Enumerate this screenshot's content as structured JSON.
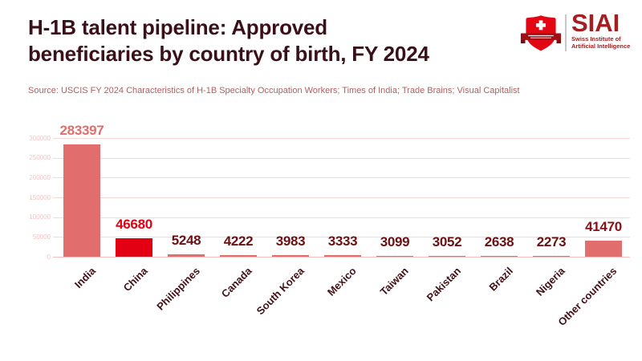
{
  "header": {
    "title_line1": "H-1B talent pipeline: Approved",
    "title_line2": "beneficiaries by country of birth, FY 2024",
    "source": "Source: USCIS FY 2024 Characteristics of H-1B Specialty Occupation Workers; Times of India; Trade Brains; Visual Capitalist"
  },
  "logo": {
    "acronym": "SIAI",
    "tagline_line1": "Swiss Institute of",
    "tagline_line2": "Artificial Intelligence",
    "shield_icon": "swiss-shield-icon"
  },
  "colors": {
    "title": "#3a1119",
    "source": "#b25e5e",
    "bar_default": "#e26d6d",
    "bar_highlight": "#e30012",
    "value_label_default": "#6d1013",
    "axis_label": "#431016",
    "tick_label": "#f6c3c3",
    "gridline": "#f8d7d7",
    "baseline": "#f3bdbd",
    "logo_red": "#a41e22",
    "shield_red": "#e30613",
    "ribbon_red": "#9e1016",
    "ribbon_fold": "#7c0c12"
  },
  "chart_data": {
    "type": "bar",
    "title": "H-1B talent pipeline: Approved beneficiaries by country of birth, FY 2024",
    "xlabel": "",
    "ylabel": "",
    "categories": [
      "India",
      "China",
      "Philippines",
      "Canada",
      "South Korea",
      "Mexico",
      "Taiwan",
      "Pakistan",
      "Brazil",
      "Nigeria",
      "Other countries"
    ],
    "values": [
      283397,
      46680,
      5248,
      4222,
      3983,
      3333,
      3099,
      3052,
      2638,
      2273,
      41470
    ],
    "bar_colors": [
      "#e26d6d",
      "#e30012",
      "#e26d6d",
      "#e26d6d",
      "#e26d6d",
      "#e26d6d",
      "#e26d6d",
      "#e26d6d",
      "#e26d6d",
      "#e26d6d",
      "#e26d6d"
    ],
    "value_label_colors": [
      "#e26d6d",
      "#e30012",
      "#6d1013",
      "#6d1013",
      "#6d1013",
      "#6d1013",
      "#6d1013",
      "#6d1013",
      "#6d1013",
      "#6d1013",
      "#8a1015"
    ],
    "ylim": [
      0,
      300000
    ],
    "yticks": [
      0,
      50000,
      100000,
      150000,
      200000,
      250000,
      300000
    ],
    "grid": true,
    "legend": "none"
  }
}
